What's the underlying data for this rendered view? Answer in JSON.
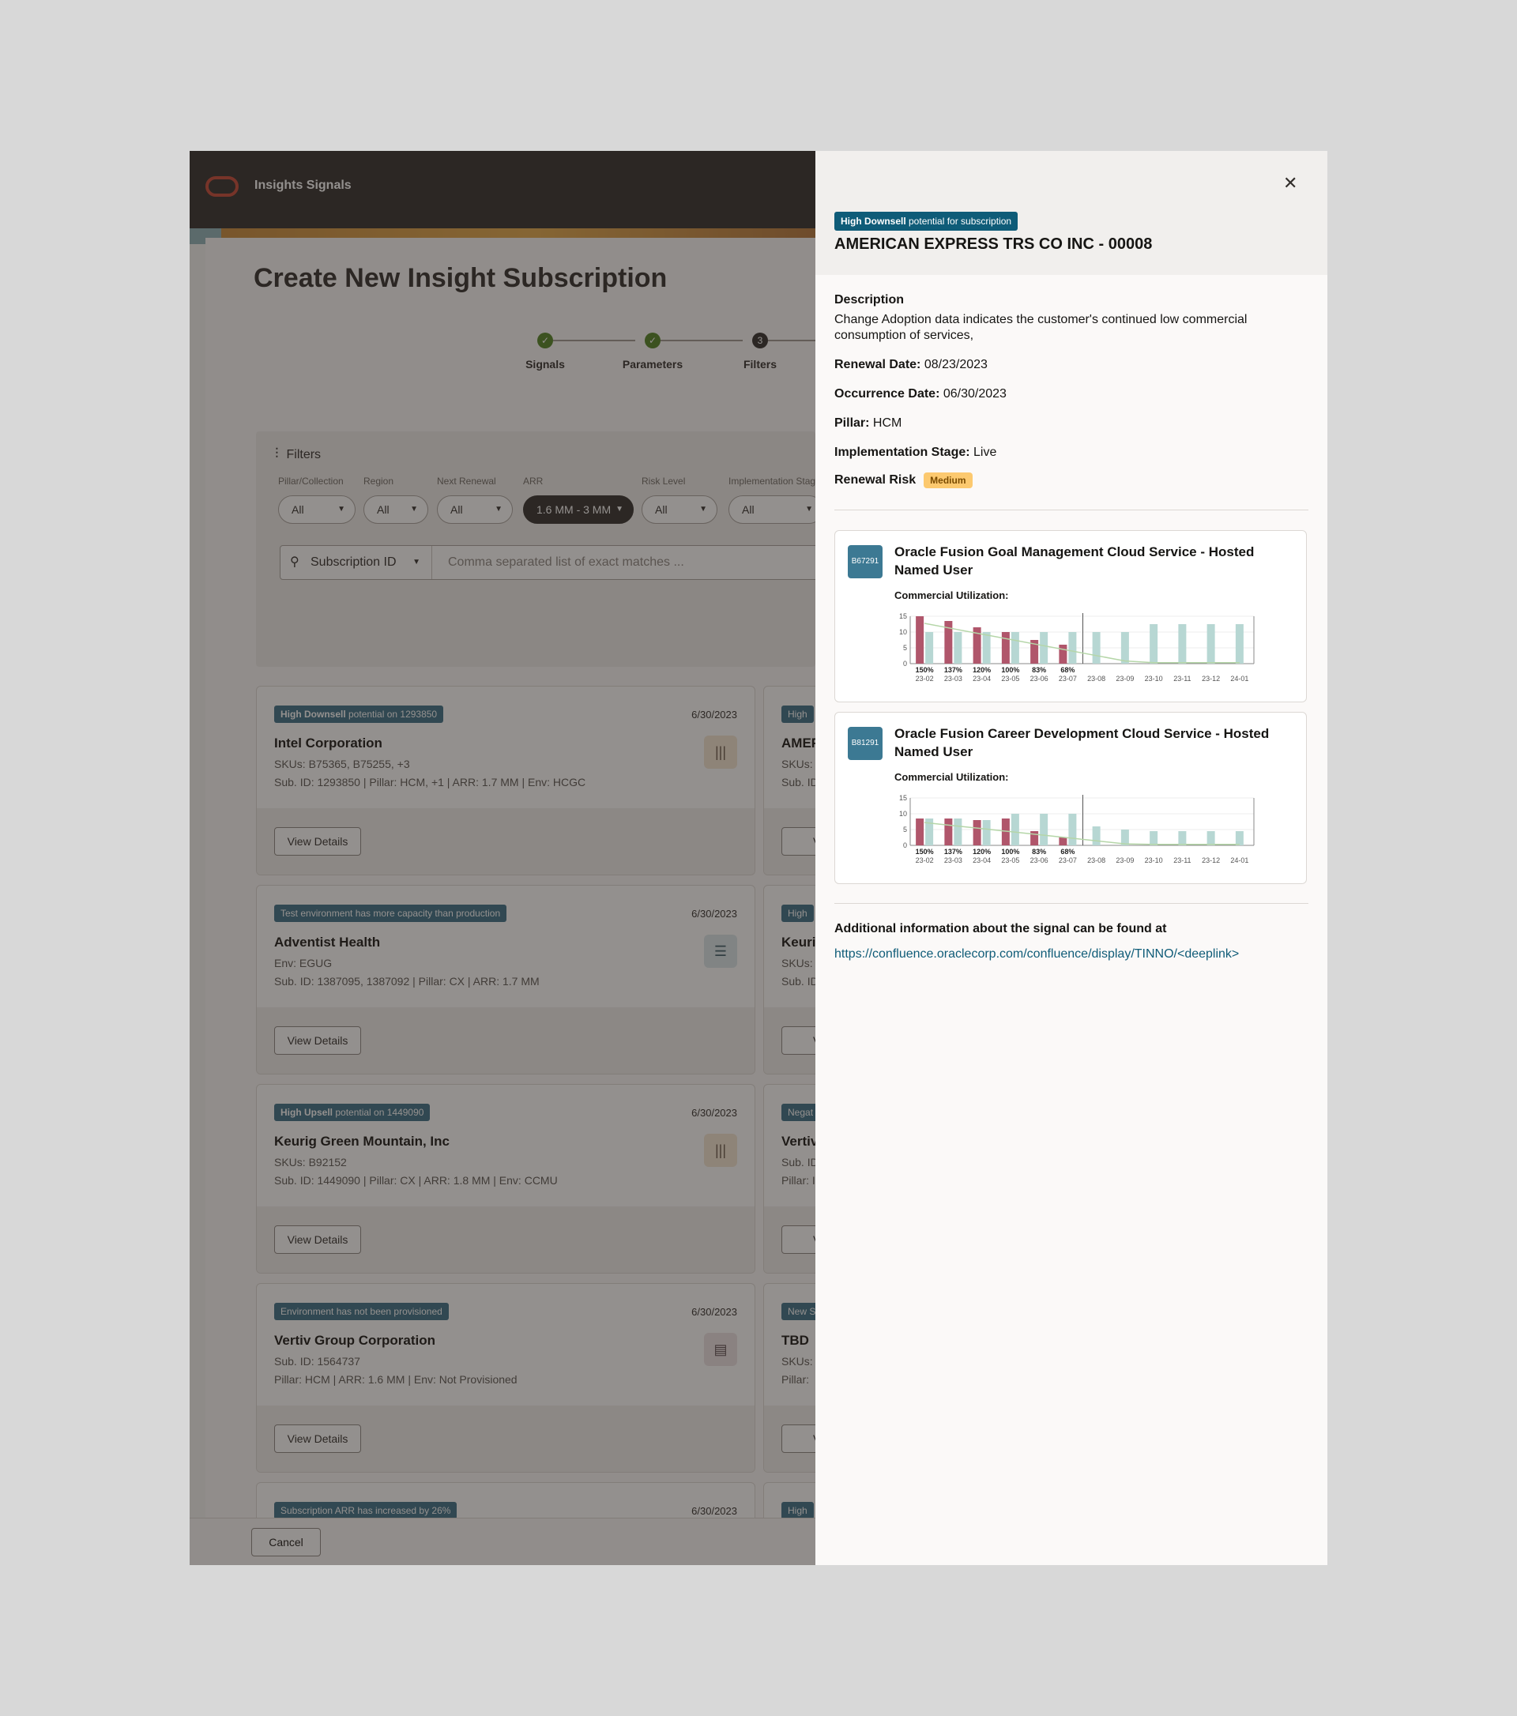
{
  "app": {
    "title": "Insights Signals"
  },
  "page": {
    "title": "Create New Insight Subscription"
  },
  "stepper": [
    {
      "label": "Signals",
      "state": "done"
    },
    {
      "label": "Parameters",
      "state": "done"
    },
    {
      "label": "Filters",
      "state": "current",
      "number": "3"
    }
  ],
  "filters": {
    "heading": "Filters",
    "fields": [
      {
        "label": "Pillar/Collection",
        "value": "All"
      },
      {
        "label": "Region",
        "value": "All"
      },
      {
        "label": "Next Renewal",
        "value": "All"
      },
      {
        "label": "ARR",
        "value": "1.6 MM - 3 MM"
      },
      {
        "label": "Risk Level",
        "value": "All"
      },
      {
        "label": "Implementation Stage",
        "value": "All"
      }
    ],
    "search_field": "Subscription ID",
    "search_placeholder": "Comma separated list of exact matches ..."
  },
  "cards": [
    {
      "badge_bold": "High Downsell",
      "badge_rest": " potential on 1293850",
      "date": "6/30/2023",
      "name": "Intel Corporation",
      "line1": "SKUs: B75365, B75255, +3",
      "line2": "Sub. ID: 1293850 | Pillar: HCM, +1 | ARR: 1.7 MM | Env: HCGC",
      "button": "View Details"
    },
    {
      "badge_bold": "",
      "badge_rest": "Test environment has more capacity than production",
      "date": "6/30/2023",
      "name": "Adventist Health",
      "line1": "Env: EGUG",
      "line2": "Sub. ID: 1387095, 1387092 | Pillar: CX | ARR: 1.7 MM",
      "button": "View Details"
    },
    {
      "badge_bold": "High Upsell",
      "badge_rest": " potential on 1449090",
      "date": "6/30/2023",
      "name": "Keurig Green Mountain, Inc",
      "line1": "SKUs: B92152",
      "line2": "Sub. ID: 1449090 | Pillar: CX | ARR: 1.8 MM | Env: CCMU",
      "button": "View Details"
    },
    {
      "badge_bold": "",
      "badge_rest": "Environment has not been provisioned",
      "date": "6/30/2023",
      "name": "Vertiv Group Corporation",
      "line1": "Sub. ID: 1564737",
      "line2": "Pillar: HCM | ARR: 1.6 MM | Env: Not Provisioned",
      "button": "View Details"
    },
    {
      "badge_bold": "",
      "badge_rest": "Subscription ARR has increased by 26%",
      "date": "6/30/2023",
      "name": "",
      "line1": "",
      "line2": "",
      "button": ""
    }
  ],
  "cards_right": [
    {
      "badge": "High",
      "name": "AMEF",
      "line1": "SKUs:",
      "line2": "Sub. ID",
      "button": "View"
    },
    {
      "badge": "High",
      "name": "Keuri",
      "line1": "SKUs:",
      "line2": "Sub. ID",
      "button": "View"
    },
    {
      "badge": "Negat",
      "name": "Vertiv",
      "line1": "Sub. ID",
      "line2": "Pillar: I",
      "button": "View"
    },
    {
      "badge": "New S",
      "name": "TBD",
      "line1": "SKUs:",
      "line2": "Pillar:",
      "button": "View"
    },
    {
      "badge": "High",
      "name": "",
      "line1": "",
      "line2": "",
      "button": ""
    }
  ],
  "footer": {
    "cancel": "Cancel"
  },
  "drawer": {
    "badge_bold": "High Downsell",
    "badge_rest": " potential for subscription",
    "title": "AMERICAN EXPRESS TRS CO INC - 00008",
    "description_label": "Description",
    "description": "Change Adoption data indicates the customer's continued low commercial consumption of services,",
    "renewal_date_label": "Renewal Date:",
    "renewal_date": "08/23/2023",
    "occurrence_date_label": "Occurrence Date:",
    "occurrence_date": "06/30/2023",
    "pillar_label": "Pillar:",
    "pillar": "HCM",
    "stage_label": "Implementation Stage:",
    "stage": "Live",
    "risk_label": "Renewal Risk",
    "risk": "Medium",
    "products": [
      {
        "sku": "B67291",
        "title": "Oracle Fusion Goal Management Cloud Service - Hosted Named User",
        "chart_label": "Commercial Utilization:"
      },
      {
        "sku": "B81291",
        "title": "Oracle Fusion Career Development Cloud Service - Hosted Named User",
        "chart_label": "Commercial Utilization:"
      }
    ],
    "info_label": "Additional information about the signal can be found at",
    "link": "https://confluence.oraclecorp.com/confluence/display/TINNO/<deeplink>"
  },
  "chart_data": [
    {
      "type": "bar",
      "categories": [
        "23-02",
        "23-03",
        "23-04",
        "23-05",
        "23-06",
        "23-07",
        "23-08",
        "23-09",
        "23-10",
        "23-11",
        "23-12",
        "24-01"
      ],
      "series": [
        {
          "values": [
            15,
            13.5,
            11.5,
            10,
            7.5,
            6,
            null,
            null,
            null,
            null,
            null,
            null
          ],
          "color": "#b0566b"
        },
        {
          "values": [
            10,
            10,
            10,
            10,
            10,
            10,
            10,
            10,
            12.5,
            12.5,
            12.5,
            12.5
          ],
          "color": "#b7d7d3"
        }
      ],
      "percent_labels": [
        "150%",
        "137%",
        "120%",
        "100%",
        "83%",
        "68%"
      ],
      "ylim": [
        0,
        15
      ],
      "yticks": [
        0,
        5,
        10,
        15
      ],
      "trend_color": "#b5d6a8"
    },
    {
      "type": "bar",
      "categories": [
        "23-02",
        "23-03",
        "23-04",
        "23-05",
        "23-06",
        "23-07",
        "23-08",
        "23-09",
        "23-10",
        "23-11",
        "23-12",
        "24-01"
      ],
      "series": [
        {
          "values": [
            8.5,
            8.5,
            8,
            8.5,
            4.5,
            2.5,
            null,
            null,
            null,
            null,
            null,
            null
          ],
          "color": "#b0566b"
        },
        {
          "values": [
            8.5,
            8.5,
            8,
            10,
            10,
            10,
            6,
            5,
            4.5,
            4.5,
            4.5,
            4.5
          ],
          "color": "#b7d7d3"
        }
      ],
      "percent_labels": [
        "150%",
        "137%",
        "120%",
        "100%",
        "83%",
        "68%"
      ],
      "ylim": [
        0,
        15
      ],
      "yticks": [
        0,
        5,
        10,
        15
      ],
      "trend_color": "#b5d6a8"
    }
  ]
}
